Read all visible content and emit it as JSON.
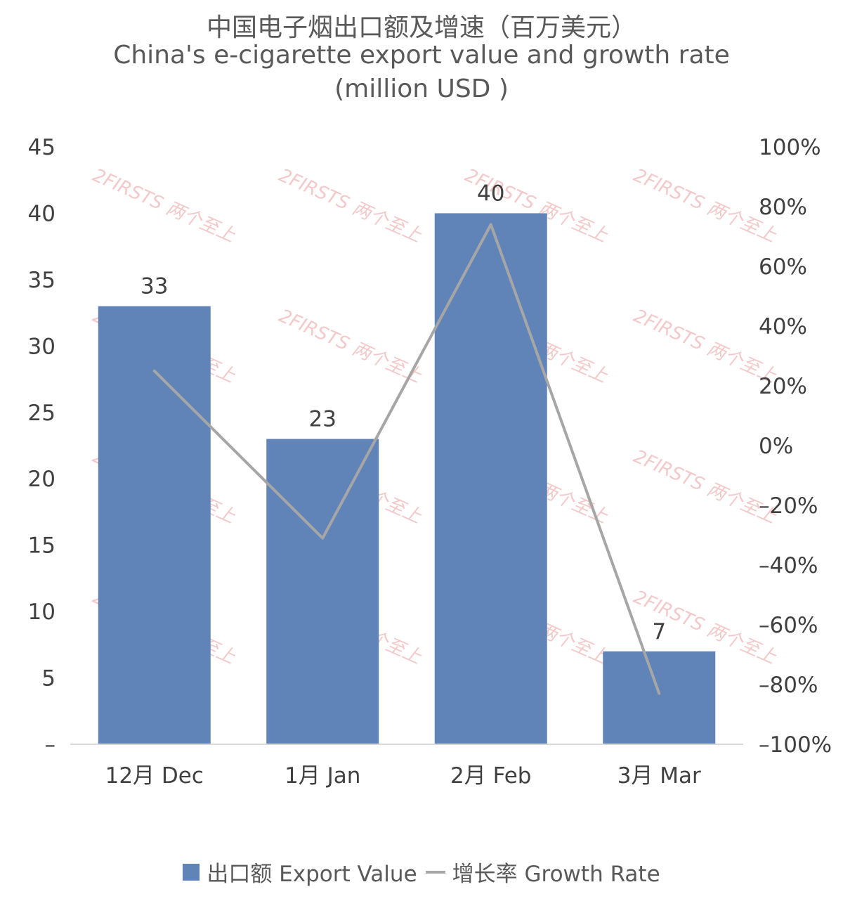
{
  "title_zh": "中国电子烟出口额及增速（百万美元）",
  "title_en_line1": "China's e-cigarette export value and growth rate",
  "title_en_line2": "(million USD )",
  "watermark_text": "2FIRSTS 两个至上",
  "colors": {
    "bar": "#6083B8",
    "line": "#A6A6A6",
    "axis": "#D9D9D9",
    "text": "#404040",
    "watermark": "#F2C4C4"
  },
  "chart_data": {
    "type": "bar",
    "categories": [
      "12月 Dec",
      "1月 Jan",
      "2月 Feb",
      "3月 Mar"
    ],
    "series": [
      {
        "name": "出口额 Export Value",
        "type": "bar",
        "axis": "left",
        "values": [
          33,
          23,
          40,
          7
        ],
        "data_labels": [
          "33",
          "23",
          "40",
          "7"
        ]
      },
      {
        "name": "增长率 Growth Rate",
        "type": "line",
        "axis": "right",
        "values": [
          25,
          -31,
          74,
          -83
        ]
      }
    ],
    "y_left": {
      "range": [
        0,
        45
      ],
      "ticks": [
        "–",
        "5",
        "10",
        "15",
        "20",
        "25",
        "30",
        "35",
        "40",
        "45"
      ]
    },
    "y_right": {
      "range": [
        -100,
        100
      ],
      "ticks": [
        "–100%",
        "–80%",
        "–60%",
        "–40%",
        "–20%",
        "0%",
        "20%",
        "40%",
        "60%",
        "80%",
        "100%"
      ]
    },
    "grid": false,
    "legend_position": "bottom"
  }
}
